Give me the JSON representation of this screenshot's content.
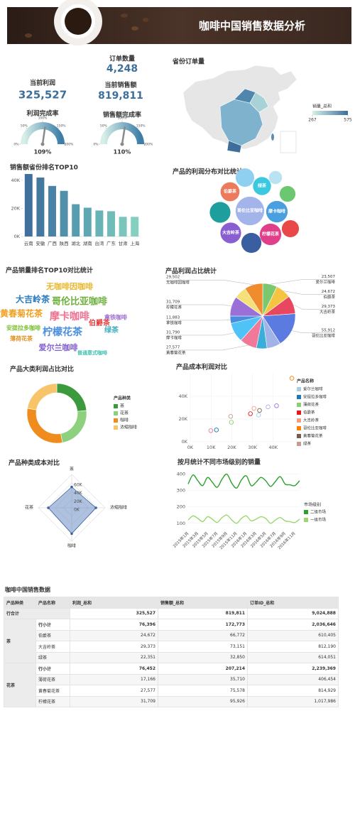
{
  "header": {
    "title": "咖啡中国销售数据分析"
  },
  "kpis": [
    {
      "label": "订单数量",
      "value": "4,248"
    },
    {
      "label": "当前利润",
      "value": "325,527"
    },
    {
      "label": "当前销售额",
      "value": "819,811"
    }
  ],
  "chart_data": [
    {
      "type": "gauge",
      "title": "利润完成率",
      "value": 109,
      "value_label": "109%",
      "range": [
        0,
        200
      ],
      "ticks": [
        {
          "value": 0,
          "label": "0%"
        },
        {
          "value": 50,
          "label": "50%"
        },
        {
          "value": 100,
          "label": "100%"
        },
        {
          "value": 150,
          "label": "150%"
        },
        {
          "value": 200,
          "label": "200%"
        }
      ],
      "colors": [
        "#d6efe8",
        "#3d7da8"
      ]
    },
    {
      "type": "gauge",
      "title": "销售额完成率",
      "value": 110,
      "value_label": "110%",
      "range": [
        0,
        200
      ],
      "ticks": [
        {
          "value": 0,
          "label": "0%"
        },
        {
          "value": 50,
          "label": "50%"
        },
        {
          "value": 100,
          "label": "100%"
        },
        {
          "value": 150,
          "label": "150%"
        },
        {
          "value": 200,
          "label": "200%"
        }
      ],
      "colors": [
        "#d6efe8",
        "#3d7da8"
      ]
    },
    {
      "type": "map",
      "title": "省份订单量",
      "legend_title": "销量_总和",
      "range": [
        267,
        575
      ],
      "ticks": [
        267,
        575
      ],
      "colors": [
        "#d6efe8",
        "#3d6f9a"
      ]
    },
    {
      "type": "bar",
      "title": "销售额省份排名TOP10",
      "categories": [
        "云南",
        "安徽",
        "广西",
        "陕西",
        "湖北",
        "湖南",
        "台湾",
        "广东",
        "甘肃",
        "上海"
      ],
      "values": [
        44500,
        42000,
        36000,
        32500,
        23000,
        20500,
        18500,
        18000,
        14000,
        14000
      ],
      "colors": [
        "#41709c",
        "#44789f",
        "#4a83a5",
        "#5090aa",
        "#579caf",
        "#5fa7b2",
        "#68b3b6",
        "#70bcb9",
        "#7ac6bc",
        "#84cfc0"
      ],
      "ylim": [
        0,
        45000
      ],
      "yticks": [
        {
          "value": 0,
          "label": "0K"
        },
        {
          "value": 20000,
          "label": "20K"
        },
        {
          "value": 40000,
          "label": "40K"
        }
      ]
    },
    {
      "type": "bubble",
      "title": "产品的利润分布对比统计",
      "labels": [
        "哥伦比亚咖啡",
        "摩卡咖啡",
        "柠檬花茶",
        "大吉岭茶",
        "伯爵茶",
        "绿茶",
        null,
        null,
        null,
        null,
        null,
        null
      ],
      "values": [
        55912,
        31790,
        31709,
        29373,
        24672,
        22351,
        29502,
        27577,
        23507,
        20085,
        17166,
        11883
      ],
      "colors": [
        "#a3b4ea",
        "#4a9fe0",
        "#e0408a",
        "#8a5ed0",
        "#ec7a5c",
        "#3cc9e0",
        "#1f9e9e",
        "#3a5fa0",
        "#8fd0f0",
        "#e84848",
        "#6cc870",
        "#b9e3f3"
      ]
    },
    {
      "type": "wordcloud",
      "title": "产品销量排名TOP10对比统计",
      "words": [
        "无咖啡因咖啡",
        "大吉岭茶",
        "哥伦比亚咖啡",
        "黄春菊花茶",
        "摩卡咖啡",
        "拿铁咖啡",
        "伯爵茶",
        "安提拉多咖啡",
        "柠檬花茶",
        "绿茶",
        "薄荷花茶",
        "爱尔兰咖啡",
        "普通意式咖啡"
      ],
      "values": [
        11,
        12,
        13,
        12,
        14,
        8,
        10,
        8,
        14,
        10,
        8,
        11,
        7
      ],
      "colors": [
        "#e8b830",
        "#2a7bc0",
        "#6bb03a",
        "#f0a020",
        "#f07090",
        "#a070d0",
        "#e04040",
        "#7bc030",
        "#4a8fe0",
        "#40b0c0",
        "#e09020",
        "#8060d0",
        "#40c0b0"
      ]
    },
    {
      "type": "pie",
      "title": "产品利润占比统计",
      "categories": [
        "爱尔兰咖啡",
        "伯爵茶",
        "大吉岭茶",
        "哥伦比亚咖啡",
        null,
        null,
        "黄春菊花茶",
        "摩卡咖啡",
        "拿铁咖啡",
        "柠檬花茶",
        null,
        "无咖啡因咖啡"
      ],
      "values": [
        23507,
        24672,
        29373,
        55912,
        22351,
        17166,
        27577,
        31790,
        11883,
        31709,
        20085,
        29502
      ],
      "value_labels": [
        "23,507",
        "24,672",
        "29,373",
        "55,912",
        null,
        null,
        "27,577",
        "31,790",
        "11,883",
        "31,709",
        null,
        "29,502"
      ],
      "colors": [
        "#7bc96f",
        "#f5c542",
        "#e8475f",
        "#5b7be0",
        "#a0b4e8",
        "#3aaed8",
        "#f07898",
        "#4fc3f7",
        "#4a8ce0",
        "#9b6fd8",
        "#f5e07a",
        "#f08c2e"
      ]
    },
    {
      "type": "donut",
      "title": "产品大类利润占比对比",
      "legend_title": "产品种类",
      "categories": [
        "茶",
        "花茶",
        "咖啡",
        "浓缩咖啡"
      ],
      "values": [
        76396,
        76452,
        100000,
        72679
      ],
      "colors": [
        "#3c9a3c",
        "#8dd17e",
        "#f08c1e",
        "#f8c46a"
      ]
    },
    {
      "type": "scatter",
      "title": "产品成本利润对比",
      "legend_title": "产品名称",
      "series": [
        {
          "name": "爱尔兰咖啡",
          "color": "#a6cee3",
          "x": [
            33000
          ],
          "y": [
            23507
          ]
        },
        {
          "name": "安提拉多咖啡",
          "color": "#1f78b4",
          "x": [
            12600
          ],
          "y": [
            10400
          ]
        },
        {
          "name": "薄荷花茶",
          "color": "#8fd06e",
          "x": [
            19800
          ],
          "y": [
            17166
          ]
        },
        {
          "name": "伯爵茶",
          "color": "#e31a1c",
          "x": [
            29000
          ],
          "y": [
            24672
          ]
        },
        {
          "name": "大吉岭茶",
          "color": "#f0a080",
          "x": [
            30700
          ],
          "y": [
            29373
          ]
        },
        {
          "name": "哥伦比亚咖啡",
          "color": "#ff7f00",
          "x": [
            49000
          ],
          "y": [
            55912
          ]
        },
        {
          "name": "黄春菊花茶",
          "color": "#7a5a4a",
          "x": [
            33400
          ],
          "y": [
            27577
          ]
        },
        {
          "name": "绿茶",
          "color": "#c49c94",
          "x": [
            19500
          ],
          "y": [
            22351
          ]
        },
        {
          "name": null,
          "color": "#f07898",
          "x": [
            9900
          ],
          "y": [
            9800
          ]
        },
        {
          "name": null,
          "color": "#b8a8e0",
          "x": [
            37500
          ],
          "y": [
            30700
          ]
        },
        {
          "name": null,
          "color": "#9b6fd8",
          "x": [
            41600
          ],
          "y": [
            31700
          ]
        }
      ],
      "xlim": [
        0,
        50000
      ],
      "xticks": [
        {
          "value": 0,
          "label": "0K"
        },
        {
          "value": 10000,
          "label": "10K"
        },
        {
          "value": 20000,
          "label": "20K"
        },
        {
          "value": 30000,
          "label": "30K"
        },
        {
          "value": 40000,
          "label": "40K"
        }
      ],
      "ylim": [
        0,
        60000
      ],
      "yticks": [
        {
          "value": 0,
          "label": "0K"
        },
        {
          "value": 20000,
          "label": "20K"
        },
        {
          "value": 40000,
          "label": "40K"
        }
      ]
    },
    {
      "type": "radar",
      "title": "产品种类成本对比",
      "axes": [
        "茶",
        "浓缩咖啡",
        "咖啡",
        "花茶"
      ],
      "values": [
        50000,
        58000,
        62000,
        56000
      ],
      "rlim": [
        0,
        80000
      ],
      "rticks": [
        {
          "value": 0,
          "label": "0K"
        },
        {
          "value": 20000,
          "label": "20K"
        },
        {
          "value": 40000,
          "label": "40K"
        },
        {
          "value": 60000,
          "label": "60K"
        }
      ],
      "color": "#6b8fc4"
    },
    {
      "type": "line",
      "title": "按月统计不同市场级别的销量",
      "legend_title": "市场级别",
      "categories": [
        "2015年1月",
        null,
        "2015年3月",
        null,
        "2015年5月",
        null,
        "2015年7月",
        null,
        "2015年9月",
        null,
        "2015年11月",
        null,
        "2016年1月",
        null,
        "2016年3月",
        null,
        "2016年5月",
        null,
        "2016年7月",
        null,
        "2016年9月",
        null,
        "2016年11月",
        null
      ],
      "series": [
        {
          "name": "二级市场",
          "color": "#2ca02c",
          "values": [
            340,
            395,
            360,
            330,
            380,
            350,
            320,
            370,
            400,
            345,
            315,
            365,
            390,
            330,
            350,
            380,
            360,
            325,
            355,
            385,
            340,
            335,
            330,
            360
          ]
        },
        {
          "name": "一级市场",
          "color": "#98d86e",
          "values": [
            120,
            145,
            130,
            110,
            140,
            125,
            105,
            135,
            150,
            120,
            100,
            130,
            145,
            115,
            125,
            140,
            130,
            100,
            120,
            135,
            115,
            110,
            105,
            125
          ]
        }
      ],
      "ylim": [
        60,
        420
      ],
      "yticks": [
        100,
        200,
        300,
        400
      ]
    }
  ],
  "table": {
    "title": "咖啡中国销售数据",
    "columns": [
      "产品种类",
      "产品名称",
      "利润_总和",
      "销售额_总和",
      "订单ID_总和"
    ],
    "total": {
      "label": "行合计",
      "values": [
        "325,527",
        "819,811",
        "9,024,888"
      ]
    },
    "groups": [
      {
        "name": "茶",
        "rows": [
          {
            "name": "行小计",
            "values": [
              "76,396",
              "172,773",
              "2,036,646"
            ]
          },
          {
            "name": "伯爵茶",
            "values": [
              "24,672",
              "66,772",
              "610,405"
            ]
          },
          {
            "name": "大吉岭茶",
            "values": [
              "29,373",
              "73,151",
              "812,190"
            ]
          },
          {
            "name": "绿茶",
            "values": [
              "22,351",
              "32,850",
              "614,051"
            ]
          }
        ]
      },
      {
        "name": "花茶",
        "rows": [
          {
            "name": "行小计",
            "values": [
              "76,452",
              "207,214",
              "2,239,369"
            ]
          },
          {
            "name": "薄荷花茶",
            "values": [
              "17,166",
              "35,710",
              "406,454"
            ]
          },
          {
            "name": "黄春菊花茶",
            "values": [
              "27,577",
              "75,578",
              "814,929"
            ]
          },
          {
            "name": "柠檬花茶",
            "values": [
              "31,709",
              "95,926",
              "1,017,986"
            ]
          }
        ]
      }
    ]
  }
}
